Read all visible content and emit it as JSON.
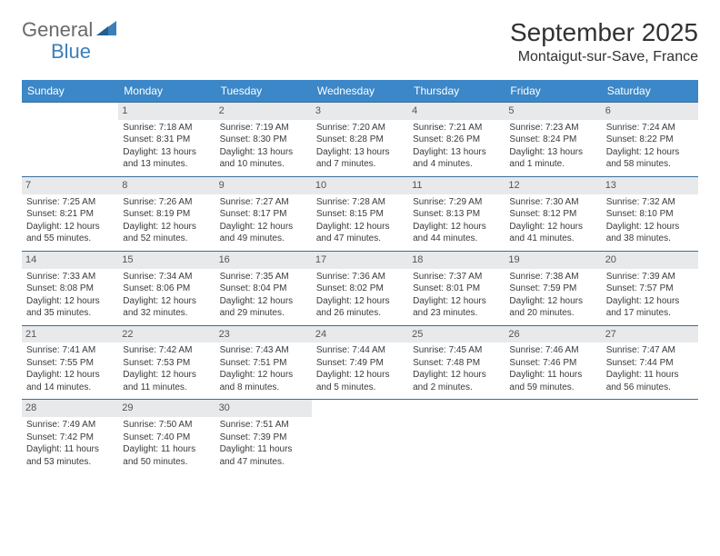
{
  "brand": {
    "part1": "General",
    "part2": "Blue"
  },
  "title": "September 2025",
  "location": "Montaigut-sur-Save, France",
  "colors": {
    "header_bg": "#3b87c8",
    "header_text": "#ffffff",
    "daynum_bg": "#e7e9eb",
    "daynum_text": "#555555",
    "cell_border": "#3b6f9a",
    "body_text": "#3a3a3a",
    "brand_gray": "#6a6a6a",
    "brand_blue": "#3b7fb8"
  },
  "day_headers": [
    "Sunday",
    "Monday",
    "Tuesday",
    "Wednesday",
    "Thursday",
    "Friday",
    "Saturday"
  ],
  "weeks": [
    [
      {
        "n": "",
        "sr": "",
        "ss": "",
        "dl": ""
      },
      {
        "n": "1",
        "sr": "Sunrise: 7:18 AM",
        "ss": "Sunset: 8:31 PM",
        "dl": "Daylight: 13 hours and 13 minutes."
      },
      {
        "n": "2",
        "sr": "Sunrise: 7:19 AM",
        "ss": "Sunset: 8:30 PM",
        "dl": "Daylight: 13 hours and 10 minutes."
      },
      {
        "n": "3",
        "sr": "Sunrise: 7:20 AM",
        "ss": "Sunset: 8:28 PM",
        "dl": "Daylight: 13 hours and 7 minutes."
      },
      {
        "n": "4",
        "sr": "Sunrise: 7:21 AM",
        "ss": "Sunset: 8:26 PM",
        "dl": "Daylight: 13 hours and 4 minutes."
      },
      {
        "n": "5",
        "sr": "Sunrise: 7:23 AM",
        "ss": "Sunset: 8:24 PM",
        "dl": "Daylight: 13 hours and 1 minute."
      },
      {
        "n": "6",
        "sr": "Sunrise: 7:24 AM",
        "ss": "Sunset: 8:22 PM",
        "dl": "Daylight: 12 hours and 58 minutes."
      }
    ],
    [
      {
        "n": "7",
        "sr": "Sunrise: 7:25 AM",
        "ss": "Sunset: 8:21 PM",
        "dl": "Daylight: 12 hours and 55 minutes."
      },
      {
        "n": "8",
        "sr": "Sunrise: 7:26 AM",
        "ss": "Sunset: 8:19 PM",
        "dl": "Daylight: 12 hours and 52 minutes."
      },
      {
        "n": "9",
        "sr": "Sunrise: 7:27 AM",
        "ss": "Sunset: 8:17 PM",
        "dl": "Daylight: 12 hours and 49 minutes."
      },
      {
        "n": "10",
        "sr": "Sunrise: 7:28 AM",
        "ss": "Sunset: 8:15 PM",
        "dl": "Daylight: 12 hours and 47 minutes."
      },
      {
        "n": "11",
        "sr": "Sunrise: 7:29 AM",
        "ss": "Sunset: 8:13 PM",
        "dl": "Daylight: 12 hours and 44 minutes."
      },
      {
        "n": "12",
        "sr": "Sunrise: 7:30 AM",
        "ss": "Sunset: 8:12 PM",
        "dl": "Daylight: 12 hours and 41 minutes."
      },
      {
        "n": "13",
        "sr": "Sunrise: 7:32 AM",
        "ss": "Sunset: 8:10 PM",
        "dl": "Daylight: 12 hours and 38 minutes."
      }
    ],
    [
      {
        "n": "14",
        "sr": "Sunrise: 7:33 AM",
        "ss": "Sunset: 8:08 PM",
        "dl": "Daylight: 12 hours and 35 minutes."
      },
      {
        "n": "15",
        "sr": "Sunrise: 7:34 AM",
        "ss": "Sunset: 8:06 PM",
        "dl": "Daylight: 12 hours and 32 minutes."
      },
      {
        "n": "16",
        "sr": "Sunrise: 7:35 AM",
        "ss": "Sunset: 8:04 PM",
        "dl": "Daylight: 12 hours and 29 minutes."
      },
      {
        "n": "17",
        "sr": "Sunrise: 7:36 AM",
        "ss": "Sunset: 8:02 PM",
        "dl": "Daylight: 12 hours and 26 minutes."
      },
      {
        "n": "18",
        "sr": "Sunrise: 7:37 AM",
        "ss": "Sunset: 8:01 PM",
        "dl": "Daylight: 12 hours and 23 minutes."
      },
      {
        "n": "19",
        "sr": "Sunrise: 7:38 AM",
        "ss": "Sunset: 7:59 PM",
        "dl": "Daylight: 12 hours and 20 minutes."
      },
      {
        "n": "20",
        "sr": "Sunrise: 7:39 AM",
        "ss": "Sunset: 7:57 PM",
        "dl": "Daylight: 12 hours and 17 minutes."
      }
    ],
    [
      {
        "n": "21",
        "sr": "Sunrise: 7:41 AM",
        "ss": "Sunset: 7:55 PM",
        "dl": "Daylight: 12 hours and 14 minutes."
      },
      {
        "n": "22",
        "sr": "Sunrise: 7:42 AM",
        "ss": "Sunset: 7:53 PM",
        "dl": "Daylight: 12 hours and 11 minutes."
      },
      {
        "n": "23",
        "sr": "Sunrise: 7:43 AM",
        "ss": "Sunset: 7:51 PM",
        "dl": "Daylight: 12 hours and 8 minutes."
      },
      {
        "n": "24",
        "sr": "Sunrise: 7:44 AM",
        "ss": "Sunset: 7:49 PM",
        "dl": "Daylight: 12 hours and 5 minutes."
      },
      {
        "n": "25",
        "sr": "Sunrise: 7:45 AM",
        "ss": "Sunset: 7:48 PM",
        "dl": "Daylight: 12 hours and 2 minutes."
      },
      {
        "n": "26",
        "sr": "Sunrise: 7:46 AM",
        "ss": "Sunset: 7:46 PM",
        "dl": "Daylight: 11 hours and 59 minutes."
      },
      {
        "n": "27",
        "sr": "Sunrise: 7:47 AM",
        "ss": "Sunset: 7:44 PM",
        "dl": "Daylight: 11 hours and 56 minutes."
      }
    ],
    [
      {
        "n": "28",
        "sr": "Sunrise: 7:49 AM",
        "ss": "Sunset: 7:42 PM",
        "dl": "Daylight: 11 hours and 53 minutes."
      },
      {
        "n": "29",
        "sr": "Sunrise: 7:50 AM",
        "ss": "Sunset: 7:40 PM",
        "dl": "Daylight: 11 hours and 50 minutes."
      },
      {
        "n": "30",
        "sr": "Sunrise: 7:51 AM",
        "ss": "Sunset: 7:39 PM",
        "dl": "Daylight: 11 hours and 47 minutes."
      },
      {
        "n": "",
        "sr": "",
        "ss": "",
        "dl": ""
      },
      {
        "n": "",
        "sr": "",
        "ss": "",
        "dl": ""
      },
      {
        "n": "",
        "sr": "",
        "ss": "",
        "dl": ""
      },
      {
        "n": "",
        "sr": "",
        "ss": "",
        "dl": ""
      }
    ]
  ]
}
